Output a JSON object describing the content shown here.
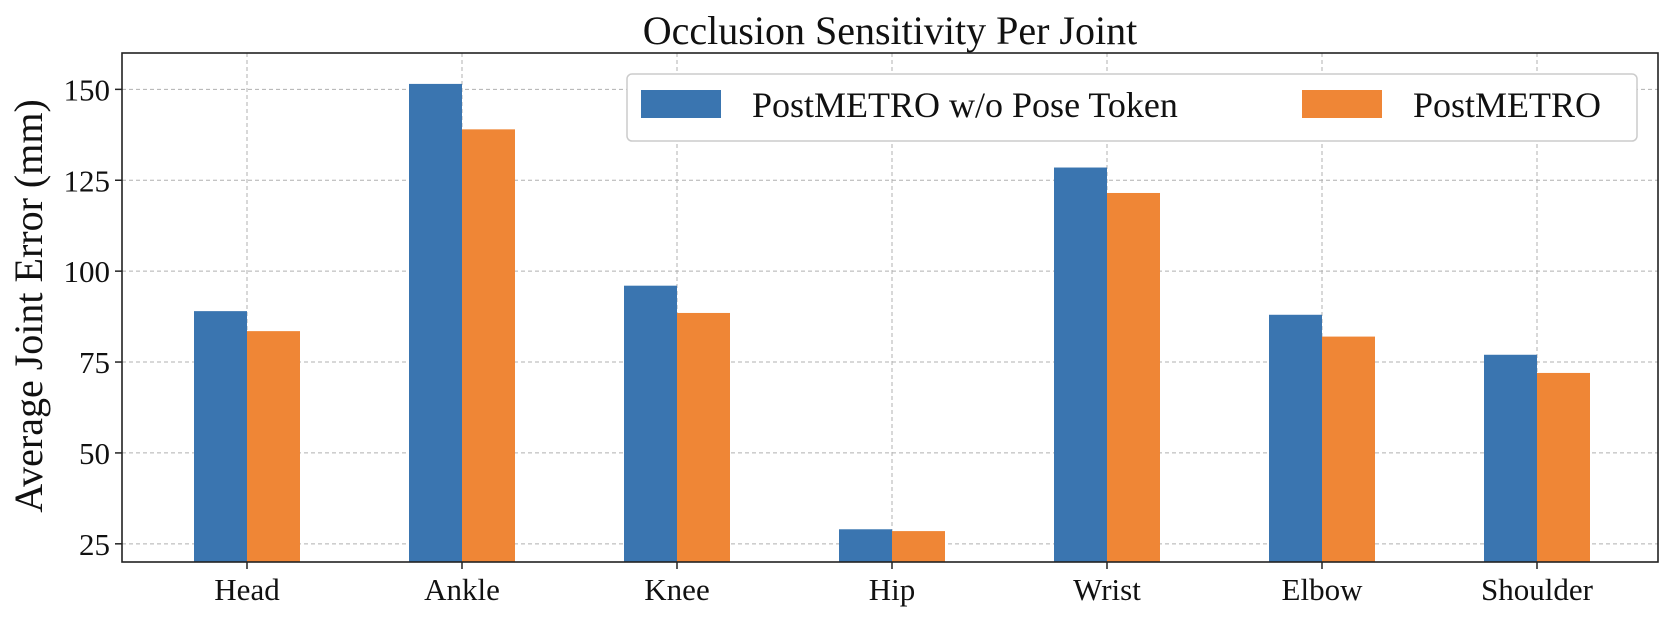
{
  "chart_data": {
    "type": "bar",
    "title": "Occlusion Sensitivity Per Joint",
    "xlabel": "",
    "ylabel": "Average Joint Error (mm)",
    "categories": [
      "Head",
      "Ankle",
      "Knee",
      "Hip",
      "Wrist",
      "Elbow",
      "Shoulder"
    ],
    "series": [
      {
        "name": "PostMETRO w/o Pose Token",
        "color": "#3a75b0",
        "values": [
          89,
          151.5,
          96,
          29,
          128.5,
          88,
          77
        ]
      },
      {
        "name": "PostMETRO",
        "color": "#ef8636",
        "values": [
          83.5,
          139,
          88.5,
          28.5,
          121.5,
          82,
          72
        ]
      }
    ],
    "ylim": [
      20,
      160
    ],
    "yticks": [
      25,
      50,
      75,
      100,
      125,
      150
    ],
    "grid": true,
    "legend_position": "top-right"
  }
}
